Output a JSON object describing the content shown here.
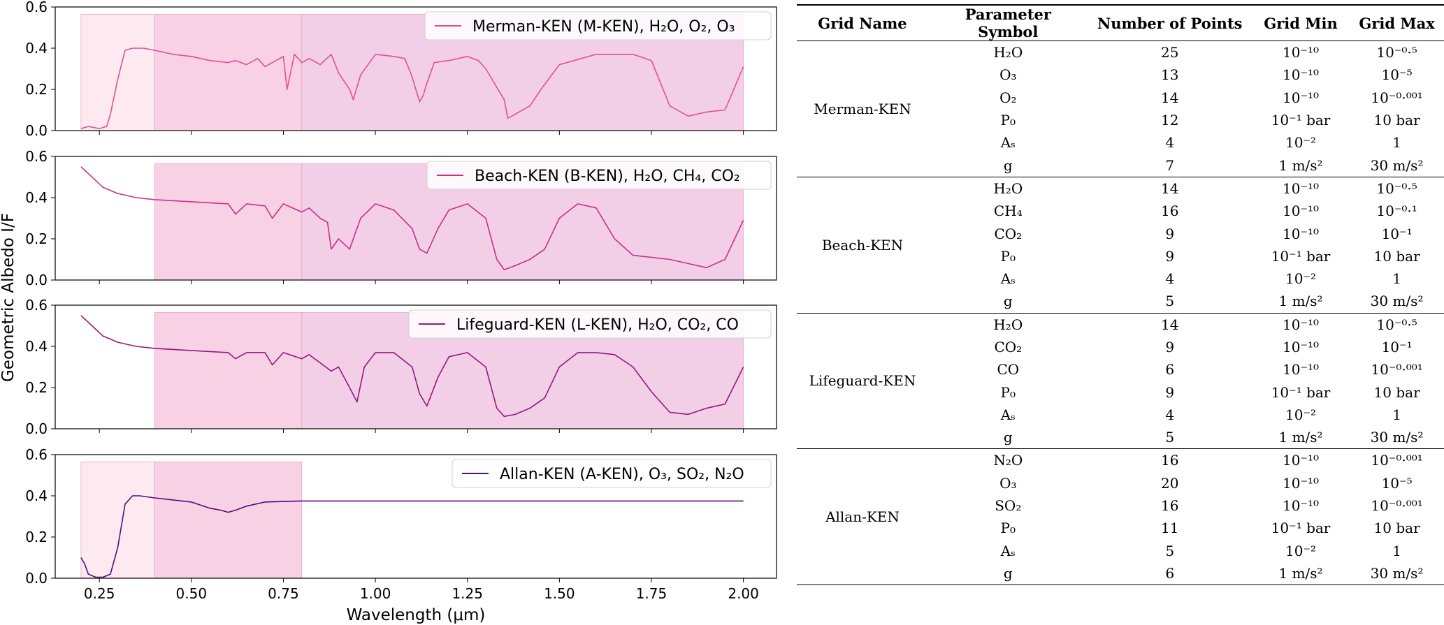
{
  "colors": {
    "panel_curves": [
      "#e0509a",
      "#cc2f8a",
      "#96187f",
      "#580a7a"
    ],
    "band_light": "#fde8f0",
    "band_medium": "#f9cfe4",
    "band_dark": "#f2cce6"
  },
  "chart_data": {
    "type": "line",
    "xlabel": "Wavelength (μm)",
    "ylabel": "Geometric Albedo I/F",
    "xlim": [
      0.13,
      2.09
    ],
    "ylim": [
      0.0,
      0.6
    ],
    "xticks": [
      "0.25",
      "0.50",
      "0.75",
      "1.00",
      "1.25",
      "1.50",
      "1.75",
      "2.00"
    ],
    "yticks": [
      "0.0",
      "0.2",
      "0.4",
      "0.6"
    ],
    "grid": false,
    "legend_position": "top-right",
    "panels": [
      {
        "legend": "Merman-KEN (M-KEN), H₂O, O₂, O₃",
        "shaded_bands": [
          [
            0.2,
            0.4
          ],
          [
            0.4,
            0.8
          ],
          [
            0.8,
            2.0
          ]
        ],
        "series": [
          {
            "name": "Merman-KEN (M-KEN), H₂O, O₂, O₃",
            "x": [
              0.2,
              0.22,
              0.25,
              0.27,
              0.28,
              0.3,
              0.32,
              0.34,
              0.37,
              0.4,
              0.45,
              0.5,
              0.55,
              0.6,
              0.62,
              0.65,
              0.68,
              0.7,
              0.72,
              0.75,
              0.76,
              0.78,
              0.8,
              0.82,
              0.85,
              0.88,
              0.9,
              0.93,
              0.94,
              0.96,
              1.0,
              1.05,
              1.08,
              1.1,
              1.12,
              1.13,
              1.14,
              1.16,
              1.2,
              1.25,
              1.28,
              1.3,
              1.35,
              1.36,
              1.38,
              1.42,
              1.45,
              1.5,
              1.6,
              1.7,
              1.75,
              1.8,
              1.85,
              1.9,
              1.95,
              2.0
            ],
            "y": [
              0.01,
              0.02,
              0.01,
              0.02,
              0.08,
              0.25,
              0.39,
              0.4,
              0.4,
              0.39,
              0.37,
              0.36,
              0.34,
              0.33,
              0.34,
              0.32,
              0.35,
              0.31,
              0.33,
              0.36,
              0.2,
              0.37,
              0.33,
              0.35,
              0.32,
              0.37,
              0.28,
              0.2,
              0.15,
              0.27,
              0.37,
              0.36,
              0.35,
              0.26,
              0.14,
              0.17,
              0.23,
              0.33,
              0.34,
              0.36,
              0.34,
              0.3,
              0.15,
              0.06,
              0.08,
              0.12,
              0.2,
              0.32,
              0.37,
              0.37,
              0.34,
              0.12,
              0.07,
              0.09,
              0.1,
              0.31
            ]
          }
        ]
      },
      {
        "legend": "Beach-KEN (B-KEN), H₂O, CH₄, CO₂",
        "shaded_bands": [
          [
            0.4,
            0.8
          ],
          [
            0.8,
            2.0
          ]
        ],
        "series": [
          {
            "name": "Beach-KEN (B-KEN), H₂O, CH₄, CO₂",
            "x": [
              0.2,
              0.23,
              0.26,
              0.3,
              0.35,
              0.4,
              0.5,
              0.6,
              0.62,
              0.65,
              0.7,
              0.72,
              0.75,
              0.8,
              0.82,
              0.85,
              0.87,
              0.88,
              0.9,
              0.93,
              0.96,
              1.0,
              1.05,
              1.1,
              1.12,
              1.14,
              1.17,
              1.2,
              1.25,
              1.3,
              1.33,
              1.35,
              1.38,
              1.42,
              1.46,
              1.5,
              1.55,
              1.6,
              1.65,
              1.7,
              1.8,
              1.85,
              1.9,
              1.95,
              2.0
            ],
            "y": [
              0.55,
              0.5,
              0.45,
              0.42,
              0.4,
              0.39,
              0.38,
              0.37,
              0.32,
              0.37,
              0.36,
              0.3,
              0.37,
              0.33,
              0.35,
              0.3,
              0.28,
              0.15,
              0.2,
              0.15,
              0.3,
              0.37,
              0.34,
              0.25,
              0.15,
              0.13,
              0.25,
              0.34,
              0.37,
              0.3,
              0.1,
              0.05,
              0.07,
              0.1,
              0.15,
              0.3,
              0.37,
              0.35,
              0.2,
              0.12,
              0.1,
              0.08,
              0.06,
              0.1,
              0.29
            ]
          }
        ]
      },
      {
        "legend": "Lifeguard-KEN (L-KEN), H₂O, CO₂, CO",
        "shaded_bands": [
          [
            0.4,
            0.8
          ],
          [
            0.8,
            2.0
          ]
        ],
        "series": [
          {
            "name": "Lifeguard-KEN (L-KEN), H₂O, CO₂, CO",
            "x": [
              0.2,
              0.23,
              0.26,
              0.3,
              0.35,
              0.4,
              0.5,
              0.6,
              0.62,
              0.65,
              0.7,
              0.72,
              0.75,
              0.8,
              0.82,
              0.85,
              0.88,
              0.9,
              0.93,
              0.95,
              0.97,
              1.0,
              1.05,
              1.1,
              1.12,
              1.14,
              1.17,
              1.2,
              1.25,
              1.3,
              1.33,
              1.35,
              1.38,
              1.42,
              1.46,
              1.5,
              1.55,
              1.6,
              1.65,
              1.7,
              1.75,
              1.8,
              1.85,
              1.9,
              1.95,
              2.0
            ],
            "y": [
              0.55,
              0.5,
              0.45,
              0.42,
              0.4,
              0.39,
              0.38,
              0.37,
              0.34,
              0.37,
              0.37,
              0.31,
              0.37,
              0.34,
              0.36,
              0.32,
              0.28,
              0.3,
              0.2,
              0.13,
              0.3,
              0.37,
              0.37,
              0.3,
              0.17,
              0.11,
              0.25,
              0.35,
              0.37,
              0.3,
              0.1,
              0.06,
              0.07,
              0.1,
              0.15,
              0.3,
              0.37,
              0.37,
              0.36,
              0.3,
              0.18,
              0.08,
              0.07,
              0.1,
              0.12,
              0.3
            ]
          }
        ]
      },
      {
        "legend": "Allan-KEN (A-KEN), O₃, SO₂, N₂O",
        "shaded_bands": [
          [
            0.2,
            0.4
          ],
          [
            0.4,
            0.8
          ]
        ],
        "series": [
          {
            "name": "Allan-KEN (A-KEN), O₃, SO₂, N₂O",
            "x": [
              0.2,
              0.21,
              0.22,
              0.24,
              0.26,
              0.28,
              0.3,
              0.32,
              0.34,
              0.36,
              0.4,
              0.45,
              0.5,
              0.55,
              0.58,
              0.6,
              0.62,
              0.65,
              0.7,
              0.8,
              1.0,
              1.5,
              2.0
            ],
            "y": [
              0.1,
              0.07,
              0.02,
              0.005,
              0.005,
              0.02,
              0.15,
              0.36,
              0.4,
              0.4,
              0.39,
              0.38,
              0.37,
              0.34,
              0.33,
              0.32,
              0.33,
              0.35,
              0.37,
              0.375,
              0.375,
              0.375,
              0.375
            ]
          }
        ]
      }
    ]
  },
  "table": {
    "headers": [
      "Grid Name",
      "Parameter Symbol",
      "Number of Points",
      "Grid Min",
      "Grid Max"
    ],
    "groups": [
      {
        "name": "Merman-KEN",
        "rows": [
          {
            "symbol": "H₂O",
            "points": "25",
            "min": "10⁻¹⁰",
            "max": "10⁻⁰·⁵"
          },
          {
            "symbol": "O₃",
            "points": "13",
            "min": "10⁻¹⁰",
            "max": "10⁻⁵"
          },
          {
            "symbol": "O₂",
            "points": "14",
            "min": "10⁻¹⁰",
            "max": "10⁻⁰·⁰⁰¹"
          },
          {
            "symbol": "P₀",
            "points": "12",
            "min": "10⁻¹ bar",
            "max": "10 bar"
          },
          {
            "symbol": "Aₛ",
            "points": "4",
            "min": "10⁻²",
            "max": "1"
          },
          {
            "symbol": "g",
            "points": "7",
            "min": "1 m/s²",
            "max": "30 m/s²"
          }
        ]
      },
      {
        "name": "Beach-KEN",
        "rows": [
          {
            "symbol": "H₂O",
            "points": "14",
            "min": "10⁻¹⁰",
            "max": "10⁻⁰·⁵"
          },
          {
            "symbol": "CH₄",
            "points": "16",
            "min": "10⁻¹⁰",
            "max": "10⁻⁰·¹"
          },
          {
            "symbol": "CO₂",
            "points": "9",
            "min": "10⁻¹⁰",
            "max": "10⁻¹"
          },
          {
            "symbol": "P₀",
            "points": "9",
            "min": "10⁻¹ bar",
            "max": "10 bar"
          },
          {
            "symbol": "Aₛ",
            "points": "4",
            "min": "10⁻²",
            "max": "1"
          },
          {
            "symbol": "g",
            "points": "5",
            "min": "1 m/s²",
            "max": "30 m/s²"
          }
        ]
      },
      {
        "name": "Lifeguard-KEN",
        "rows": [
          {
            "symbol": "H₂O",
            "points": "14",
            "min": "10⁻¹⁰",
            "max": "10⁻⁰·⁵"
          },
          {
            "symbol": "CO₂",
            "points": "9",
            "min": "10⁻¹⁰",
            "max": "10⁻¹"
          },
          {
            "symbol": "CO",
            "points": "6",
            "min": "10⁻¹⁰",
            "max": "10⁻⁰·⁰⁰¹"
          },
          {
            "symbol": "P₀",
            "points": "9",
            "min": "10⁻¹ bar",
            "max": "10 bar"
          },
          {
            "symbol": "Aₛ",
            "points": "4",
            "min": "10⁻²",
            "max": "1"
          },
          {
            "symbol": "g",
            "points": "5",
            "min": "1 m/s²",
            "max": "30 m/s²"
          }
        ]
      },
      {
        "name": "Allan-KEN",
        "rows": [
          {
            "symbol": "N₂O",
            "points": "16",
            "min": "10⁻¹⁰",
            "max": "10⁻⁰·⁰⁰¹"
          },
          {
            "symbol": "O₃",
            "points": "20",
            "min": "10⁻¹⁰",
            "max": "10⁻⁵"
          },
          {
            "symbol": "SO₂",
            "points": "16",
            "min": "10⁻¹⁰",
            "max": "10⁻⁰·⁰⁰¹"
          },
          {
            "symbol": "P₀",
            "points": "11",
            "min": "10⁻¹ bar",
            "max": "10 bar"
          },
          {
            "symbol": "Aₛ",
            "points": "5",
            "min": "10⁻²",
            "max": "1"
          },
          {
            "symbol": "g",
            "points": "6",
            "min": "1 m/s²",
            "max": "30 m/s²"
          }
        ]
      }
    ]
  }
}
